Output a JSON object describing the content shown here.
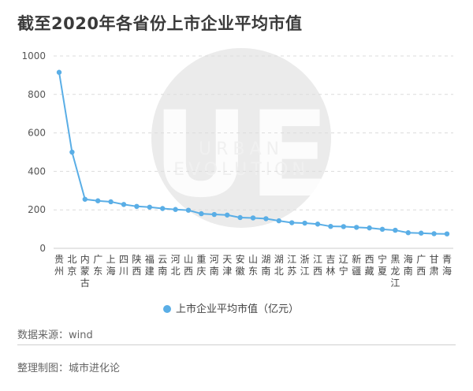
{
  "title": "截至2020年各省份上市企业平均市值",
  "watermark": {
    "line1": "URBAN",
    "line2": "EVOLUTION",
    "logo": "UE"
  },
  "chart_data": {
    "type": "line",
    "categories": [
      "贵州",
      "北京",
      "内蒙古",
      "广东",
      "上海",
      "四川",
      "陕西",
      "福建",
      "云南",
      "河北",
      "山西",
      "重庆",
      "河南",
      "天津",
      "安徽",
      "山东",
      "湖南",
      "湖北",
      "江苏",
      "浙江",
      "江西",
      "吉林",
      "辽宁",
      "新疆",
      "西藏",
      "宁夏",
      "黑龙江",
      "海南",
      "广西",
      "甘肃",
      "青海"
    ],
    "series": [
      {
        "name": "上市企业平均市值（亿元）",
        "color": "#5aaee6",
        "values": [
          915,
          500,
          255,
          247,
          242,
          228,
          218,
          214,
          207,
          202,
          198,
          180,
          176,
          173,
          160,
          158,
          154,
          143,
          133,
          131,
          126,
          114,
          113,
          109,
          106,
          99,
          94,
          81,
          79,
          76,
          75
        ]
      }
    ],
    "ylim": [
      0,
      1000
    ],
    "yticks": [
      0,
      200,
      400,
      600,
      800,
      1000
    ],
    "grid": true,
    "legend": "bottom-center",
    "xlabel": "",
    "ylabel": ""
  },
  "footer": {
    "source": "数据来源：wind",
    "credit": "整理制图：城市进化论"
  }
}
